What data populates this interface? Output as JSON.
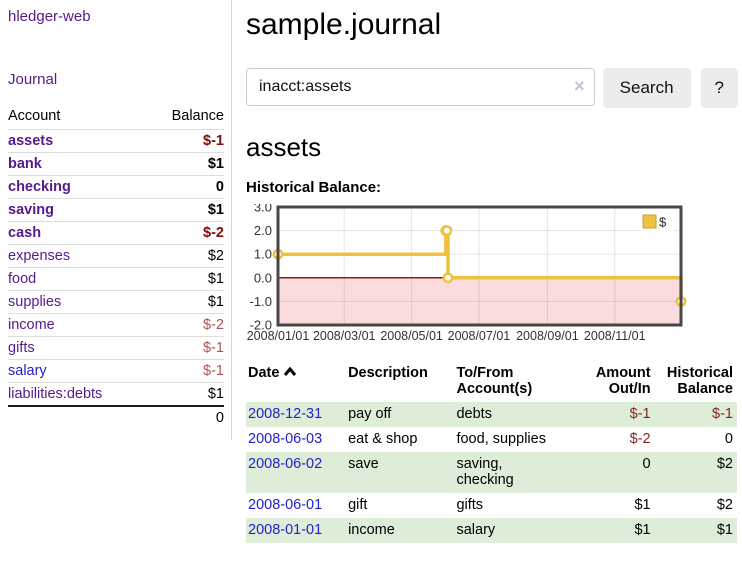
{
  "colors": {
    "accent_purple": "#551a8b",
    "link_blue": "#2222cc",
    "negative_strong": "#7f0b0b",
    "negative_soft": "#aa5555",
    "negative_table": "#8b1f1f",
    "row_stripe_green": "#ddedd8"
  },
  "sidebar": {
    "app_title": "hledger-web",
    "journal_label": "Journal",
    "accounts": {
      "header_account": "Account",
      "header_balance": "Balance",
      "rows": [
        {
          "name": "assets",
          "indent": 1,
          "bold": true,
          "balance": "$-1",
          "balance_style": "neg-strong"
        },
        {
          "name": "bank",
          "indent": 2,
          "bold": true,
          "balance": "$1",
          "balance_style": "bold"
        },
        {
          "name": "checking",
          "indent": 3,
          "bold": true,
          "balance": "0",
          "balance_style": "bold"
        },
        {
          "name": "saving",
          "indent": 3,
          "bold": true,
          "balance": "$1",
          "balance_style": "bold"
        },
        {
          "name": "cash",
          "indent": 2,
          "bold": true,
          "balance": "$-2",
          "balance_style": "neg-strong"
        },
        {
          "name": "expenses",
          "indent": 1,
          "bold": false,
          "balance": "$2",
          "balance_style": ""
        },
        {
          "name": "food",
          "indent": 2,
          "bold": false,
          "balance": "$1",
          "balance_style": ""
        },
        {
          "name": "supplies",
          "indent": 2,
          "bold": false,
          "balance": "$1",
          "balance_style": ""
        },
        {
          "name": "income",
          "indent": 1,
          "bold": false,
          "balance": "$-2",
          "balance_style": "neg"
        },
        {
          "name": "gifts",
          "indent": 2,
          "bold": false,
          "balance": "$-1",
          "balance_style": "neg"
        },
        {
          "name": "salary",
          "indent": 2,
          "bold": false,
          "link_style": "unvisited",
          "balance": "$-1",
          "balance_style": "neg"
        },
        {
          "name": "liabilities:debts",
          "indent": 1,
          "bold": false,
          "balance": "$1",
          "balance_style": ""
        }
      ],
      "total": "0"
    }
  },
  "main": {
    "title": "sample.journal",
    "search": {
      "value": "inacct:assets",
      "clear_icon": "×",
      "button_label": "Search",
      "help_label": "?"
    },
    "account_heading": "assets",
    "chart_label": "Historical Balance:"
  },
  "chart_data": {
    "type": "line",
    "step": true,
    "title": "Historical Balance",
    "series": [
      {
        "name": "$",
        "color": "#edc240",
        "points": [
          {
            "date": "2008-01-01",
            "value": 1
          },
          {
            "date": "2008-06-01",
            "value": 2
          },
          {
            "date": "2008-06-02",
            "value": 2
          },
          {
            "date": "2008-06-03",
            "value": 0
          },
          {
            "date": "2008-12-31",
            "value": -1
          }
        ]
      }
    ],
    "xrange": [
      "2008-01-01",
      "2008-12-31"
    ],
    "ylim": [
      -2,
      3
    ],
    "yticks": [
      3,
      2,
      1,
      0,
      -1,
      -2
    ],
    "xticks": [
      {
        "date": "2008-01-01",
        "label": "2008/01/01"
      },
      {
        "date": "2008-03-01",
        "label": "2008/03/01"
      },
      {
        "date": "2008-05-01",
        "label": "2008/05/01"
      },
      {
        "date": "2008-07-01",
        "label": "2008/07/01"
      },
      {
        "date": "2008-09-01",
        "label": "2008/09/01"
      },
      {
        "date": "2008-11-01",
        "label": "2008/11/01"
      }
    ],
    "legend": {
      "label": "$",
      "position": "top-right"
    },
    "grid": true,
    "negative_fill": "#fbdcdc",
    "zero_line_color": "#8b1b1b",
    "border_color": "#474747"
  },
  "register": {
    "headers": [
      {
        "line1": "Date",
        "line2": "",
        "align": "left",
        "sorted": "asc"
      },
      {
        "line1": "Description",
        "line2": "",
        "align": "left"
      },
      {
        "line1": "To/From",
        "line2": "Account(s)",
        "align": "left"
      },
      {
        "line1": "Amount",
        "line2": "Out/In",
        "align": "right"
      },
      {
        "line1": "Historical",
        "line2": "Balance",
        "align": "right"
      }
    ],
    "rows": [
      {
        "date": "2008-12-31",
        "description": "pay off",
        "accounts": [
          "debts"
        ],
        "amount": "$-1",
        "amount_negative": true,
        "balance": "$-1",
        "balance_negative": true
      },
      {
        "date": "2008-06-03",
        "description": "eat & shop",
        "accounts": [
          "food, supplies"
        ],
        "amount": "$-2",
        "amount_negative": true,
        "balance": "0",
        "balance_negative": false
      },
      {
        "date": "2008-06-02",
        "description": "save",
        "accounts": [
          "saving,",
          "checking"
        ],
        "amount": "0",
        "amount_negative": false,
        "balance": "$2",
        "balance_negative": false
      },
      {
        "date": "2008-06-01",
        "description": "gift",
        "accounts": [
          "gifts"
        ],
        "amount": "$1",
        "amount_negative": false,
        "balance": "$2",
        "balance_negative": false
      },
      {
        "date": "2008-01-01",
        "description": "income",
        "accounts": [
          "salary"
        ],
        "amount": "$1",
        "amount_negative": false,
        "balance": "$1",
        "balance_negative": false
      }
    ]
  }
}
